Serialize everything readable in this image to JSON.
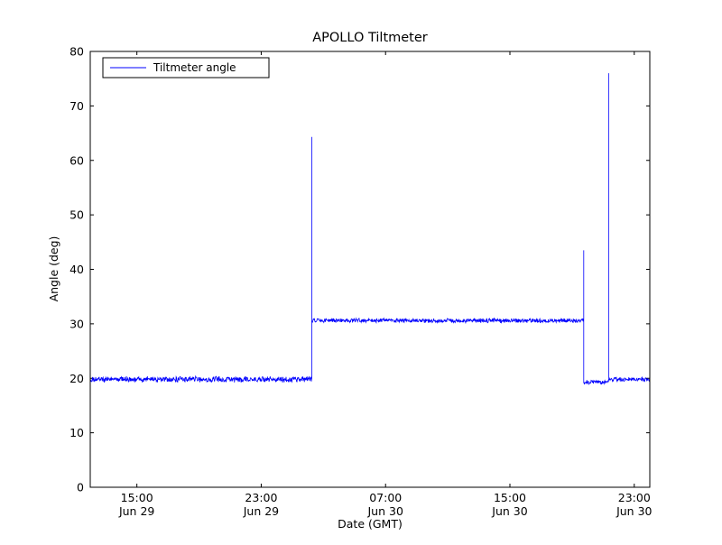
{
  "chart_data": {
    "type": "line",
    "title": "APOLLO Tiltmeter",
    "xlabel": "Date (GMT)",
    "ylabel": "Angle (deg)",
    "xlim": [
      12,
      48
    ],
    "ylim": [
      0,
      80
    ],
    "yticks": [
      0,
      10,
      20,
      30,
      40,
      50,
      60,
      70,
      80
    ],
    "xticks": [
      {
        "t": 15,
        "time": "15:00",
        "date": "Jun 29"
      },
      {
        "t": 23,
        "time": "23:00",
        "date": "Jun 29"
      },
      {
        "t": 31,
        "time": "07:00",
        "date": "Jun 30"
      },
      {
        "t": 39,
        "time": "15:00",
        "date": "Jun 30"
      },
      {
        "t": 47,
        "time": "23:00",
        "date": "Jun 30"
      }
    ],
    "grid": false,
    "legend_position": "upper left",
    "series": [
      {
        "name": "Tiltmeter angle",
        "color": "#0000ff",
        "segments": [
          {
            "t0": 12.0,
            "t1": 26.25,
            "level": 19.8,
            "noise": 0.45
          },
          {
            "t0": 26.25,
            "t1": 43.75,
            "level": 30.6,
            "noise": 0.35
          },
          {
            "t0": 43.75,
            "t1": 45.35,
            "level": 19.3,
            "noise": 0.35
          },
          {
            "t0": 45.35,
            "t1": 48.0,
            "level": 19.8,
            "noise": 0.35
          }
        ],
        "spikes": [
          {
            "t": 26.25,
            "peak": 64.3
          },
          {
            "t": 43.75,
            "peak": 43.5
          },
          {
            "t": 45.35,
            "peak": 76.0
          }
        ]
      }
    ]
  },
  "colors": {
    "line": "#0000ff",
    "frame": "#000000",
    "background": "#ffffff"
  }
}
